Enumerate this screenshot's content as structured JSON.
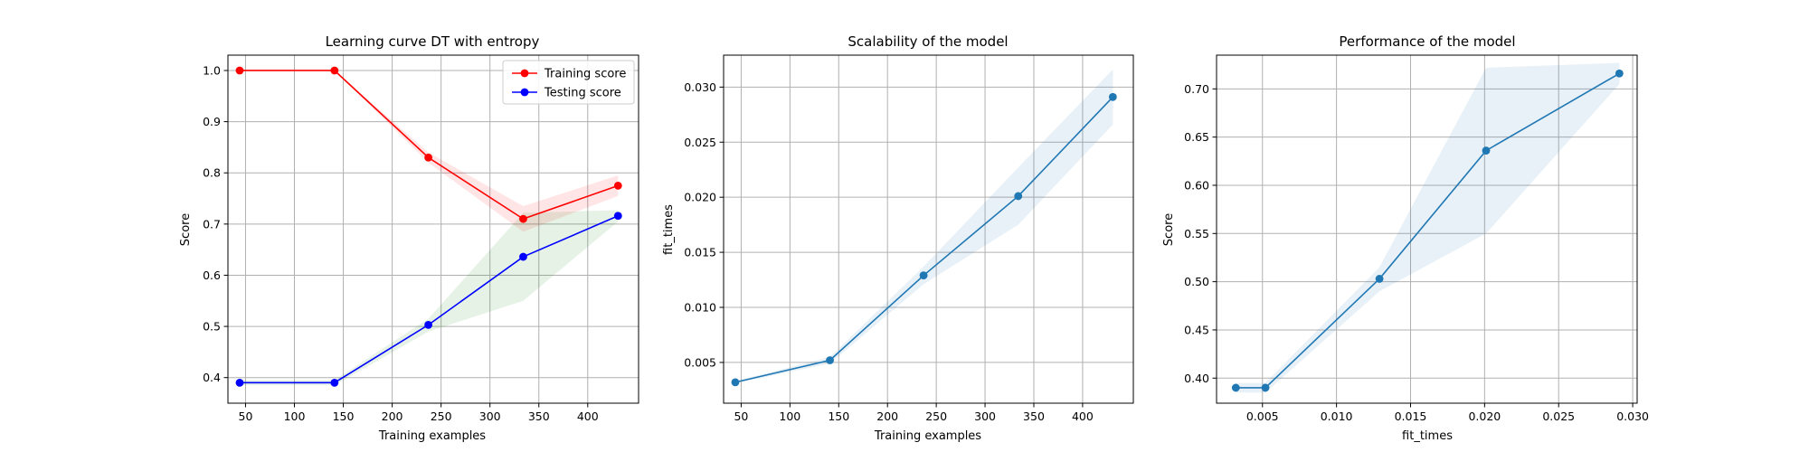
{
  "chart_data": [
    {
      "type": "line",
      "title": "Learning curve DT with entropy",
      "xlabel": "Training examples",
      "ylabel": "Score",
      "xlim": [
        32,
        452
      ],
      "ylim": [
        0.35,
        1.03
      ],
      "xticks": [
        50,
        100,
        150,
        200,
        250,
        300,
        350,
        400
      ],
      "yticks": [
        0.4,
        0.5,
        0.6,
        0.7,
        0.8,
        0.9,
        1.0
      ],
      "ytick_labels": [
        "0.4",
        "0.5",
        "0.6",
        "0.7",
        "0.8",
        "0.9",
        "1.0"
      ],
      "grid": true,
      "legend": "top-right",
      "x": [
        44,
        141,
        237,
        334,
        431
      ],
      "series": [
        {
          "name": "Training score",
          "color": "#ff0000",
          "values": [
            1.0,
            1.0,
            0.83,
            0.71,
            0.775
          ],
          "band_lower": [
            1.0,
            1.0,
            0.82,
            0.685,
            0.755
          ],
          "band_upper": [
            1.0,
            1.0,
            0.84,
            0.735,
            0.795
          ]
        },
        {
          "name": "Testing score",
          "color": "#0000ff",
          "values": [
            0.39,
            0.39,
            0.503,
            0.636,
            0.716
          ],
          "band_lower": [
            0.385,
            0.385,
            0.49,
            0.55,
            0.705
          ],
          "band_upper": [
            0.395,
            0.395,
            0.515,
            0.722,
            0.727
          ]
        }
      ]
    },
    {
      "type": "line",
      "title": "Scalability of the model",
      "xlabel": "Training examples",
      "ylabel": "fit_times",
      "xlim": [
        32,
        452
      ],
      "ylim": [
        0.0013,
        0.0329
      ],
      "xticks": [
        50,
        100,
        150,
        200,
        250,
        300,
        350,
        400
      ],
      "yticks": [
        0.005,
        0.01,
        0.015,
        0.02,
        0.025,
        0.03
      ],
      "ytick_labels": [
        "0.005",
        "0.010",
        "0.015",
        "0.020",
        "0.025",
        "0.030"
      ],
      "grid": true,
      "x": [
        44,
        141,
        237,
        334,
        431
      ],
      "series": [
        {
          "color": "#1f77b4",
          "values": [
            0.0032,
            0.0052,
            0.0129,
            0.0201,
            0.0291
          ],
          "band_lower": [
            0.0031,
            0.0049,
            0.0121,
            0.0175,
            0.0266
          ],
          "band_upper": [
            0.0033,
            0.0055,
            0.0137,
            0.0227,
            0.0316
          ]
        }
      ]
    },
    {
      "type": "line",
      "title": "Performance of the model",
      "xlabel": "fit_times",
      "ylabel": "Score",
      "xlim": [
        0.0019,
        0.0303
      ],
      "ylim": [
        0.374,
        0.735
      ],
      "xticks": [
        0.005,
        0.01,
        0.015,
        0.02,
        0.025,
        0.03
      ],
      "xtick_labels": [
        "0.005",
        "0.010",
        "0.015",
        "0.020",
        "0.025",
        "0.030"
      ],
      "yticks": [
        0.4,
        0.45,
        0.5,
        0.55,
        0.6,
        0.65,
        0.7
      ],
      "ytick_labels": [
        "0.40",
        "0.45",
        "0.50",
        "0.55",
        "0.60",
        "0.65",
        "0.70"
      ],
      "grid": true,
      "x": [
        0.0032,
        0.0052,
        0.0129,
        0.0201,
        0.0291
      ],
      "series": [
        {
          "color": "#1f77b4",
          "values": [
            0.39,
            0.39,
            0.503,
            0.636,
            0.716
          ],
          "band_lower": [
            0.385,
            0.385,
            0.49,
            0.55,
            0.705
          ],
          "band_upper": [
            0.395,
            0.395,
            0.515,
            0.722,
            0.727
          ]
        }
      ]
    }
  ]
}
